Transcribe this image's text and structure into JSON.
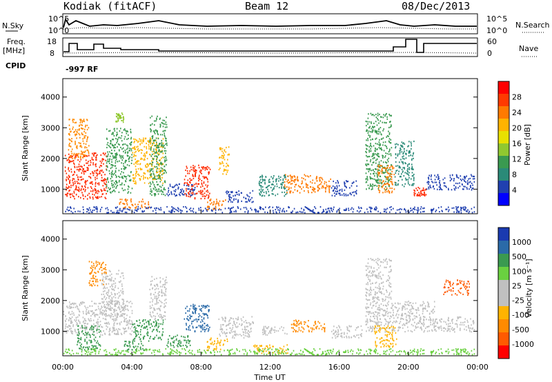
{
  "header": {
    "radar": "Kodiak (fitACF)",
    "beam": "Beam 12",
    "date": "08/Dec/2013"
  },
  "top_panels": {
    "nsky_label": "N.Sky",
    "nsearch_label": "N.Search",
    "nsky_ticks": [
      "10^5",
      "10^0"
    ],
    "nsearch_ticks": [
      "10^5",
      "10^0"
    ],
    "freq_label": "Freq.",
    "freq_unit": "[MHz]",
    "freq_ticks": [
      "18",
      "8"
    ],
    "nave_label": "Nave",
    "nave_ticks": [
      "60",
      "0"
    ],
    "cpid_label": "CPID",
    "cpid_value": "-997 RF"
  },
  "chart_data": [
    {
      "type": "heatmap",
      "name": "power",
      "ylabel": "Slant Range [km]",
      "xlabel": "",
      "ylim": [
        200,
        4600
      ],
      "xlim": [
        0,
        24
      ],
      "yticks": [
        "1000",
        "2000",
        "3000",
        "4000"
      ],
      "colorbar": {
        "label": "Power [dB]",
        "ticks": [
          "28",
          "24",
          "20",
          "16",
          "12",
          "8",
          "4"
        ],
        "colors": [
          "#ff0000",
          "#ff3a00",
          "#ff7a00",
          "#ffb300",
          "#e8e000",
          "#90c830",
          "#3a9a50",
          "#2a8a78",
          "#2040b0",
          "#0000ff"
        ]
      },
      "echoes": [
        {
          "t0": 0.1,
          "t1": 2.5,
          "r0": 700,
          "r1": 2200,
          "color": "#ff2a00"
        },
        {
          "t0": 0.3,
          "t1": 1.5,
          "r0": 2000,
          "r1": 3300,
          "color": "#ff8a00"
        },
        {
          "t0": 2.5,
          "t1": 4.0,
          "r0": 900,
          "r1": 3000,
          "color": "#3a9a50"
        },
        {
          "t0": 3.0,
          "t1": 3.5,
          "r0": 3200,
          "r1": 3500,
          "color": "#90c830"
        },
        {
          "t0": 3.2,
          "t1": 5.0,
          "r0": 400,
          "r1": 700,
          "color": "#ff7a00"
        },
        {
          "t0": 4.0,
          "t1": 5.8,
          "r0": 1200,
          "r1": 2700,
          "color": "#ffb300"
        },
        {
          "t0": 5.0,
          "t1": 6.0,
          "r0": 800,
          "r1": 3400,
          "color": "#3a9a50"
        },
        {
          "t0": 6.0,
          "t1": 7.8,
          "r0": 800,
          "r1": 1200,
          "color": "#2040b0"
        },
        {
          "t0": 7.0,
          "t1": 8.5,
          "r0": 700,
          "r1": 1800,
          "color": "#ff2a00"
        },
        {
          "t0": 8.3,
          "t1": 9.4,
          "r0": 350,
          "r1": 700,
          "color": "#ff7a00"
        },
        {
          "t0": 9.0,
          "t1": 9.6,
          "r0": 1500,
          "r1": 2400,
          "color": "#ffb300"
        },
        {
          "t0": 9.4,
          "t1": 11.0,
          "r0": 600,
          "r1": 1000,
          "color": "#2040b0"
        },
        {
          "t0": 11.3,
          "t1": 13.0,
          "r0": 800,
          "r1": 1500,
          "color": "#2a8a78"
        },
        {
          "t0": 12.8,
          "t1": 15.5,
          "r0": 900,
          "r1": 1500,
          "color": "#ff7a00"
        },
        {
          "t0": 15.5,
          "t1": 17.0,
          "r0": 800,
          "r1": 1300,
          "color": "#2040b0"
        },
        {
          "t0": 17.5,
          "t1": 19.0,
          "r0": 1000,
          "r1": 3500,
          "color": "#3a9a50"
        },
        {
          "t0": 18.2,
          "t1": 19.2,
          "r0": 900,
          "r1": 1800,
          "color": "#ff7a00"
        },
        {
          "t0": 19.2,
          "t1": 20.3,
          "r0": 1100,
          "r1": 2600,
          "color": "#2a8a78"
        },
        {
          "t0": 20.3,
          "t1": 21.0,
          "r0": 800,
          "r1": 1100,
          "color": "#ff2a00"
        },
        {
          "t0": 21.0,
          "t1": 23.8,
          "r0": 1000,
          "r1": 1500,
          "color": "#2040b0"
        },
        {
          "t0": 0.1,
          "t1": 23.8,
          "r0": 250,
          "r1": 450,
          "color": "#2040b0"
        }
      ]
    },
    {
      "type": "heatmap",
      "name": "velocity",
      "ylabel": "Slant Range [km]",
      "xlabel": "Time UT",
      "ylim": [
        200,
        4600
      ],
      "xlim": [
        0,
        24
      ],
      "yticks": [
        "1000",
        "2000",
        "3000",
        "4000"
      ],
      "xticks": [
        "00:00",
        "04:00",
        "08:00",
        "12:00",
        "16:00",
        "20:00",
        "00:00"
      ],
      "colorbar": {
        "label": "Velocity [m s⁻¹]",
        "ticks": [
          "1000",
          "500",
          "100",
          "25",
          "-25",
          "-100",
          "-500",
          "-1000"
        ],
        "colors": [
          "#1a3ab0",
          "#2a6aa8",
          "#3a9a50",
          "#6ad040",
          "#c0c0c0",
          "#c0c0c0",
          "#ffb300",
          "#ff8a00",
          "#ff5a00",
          "#ff0000"
        ]
      },
      "echoes": [
        {
          "t0": 0.0,
          "t1": 4.0,
          "r0": 900,
          "r1": 2000,
          "color": "#c0c0c0"
        },
        {
          "t0": 0.8,
          "t1": 2.2,
          "r0": 400,
          "r1": 1200,
          "color": "#3a9a50"
        },
        {
          "t0": 1.5,
          "t1": 2.5,
          "r0": 2500,
          "r1": 3300,
          "color": "#ff8a00"
        },
        {
          "t0": 2.2,
          "t1": 3.5,
          "r0": 1500,
          "r1": 3000,
          "color": "#c0c0c0"
        },
        {
          "t0": 3.5,
          "t1": 4.8,
          "r0": 400,
          "r1": 700,
          "color": "#3a9a50"
        },
        {
          "t0": 4.0,
          "t1": 5.8,
          "r0": 700,
          "r1": 1400,
          "color": "#3a9a50"
        },
        {
          "t0": 5.0,
          "t1": 6.0,
          "r0": 1400,
          "r1": 2800,
          "color": "#c0c0c0"
        },
        {
          "t0": 6.0,
          "t1": 7.5,
          "r0": 500,
          "r1": 900,
          "color": "#3a9a50"
        },
        {
          "t0": 7.0,
          "t1": 8.5,
          "r0": 1000,
          "r1": 1900,
          "color": "#2a6aa8"
        },
        {
          "t0": 8.3,
          "t1": 9.5,
          "r0": 400,
          "r1": 800,
          "color": "#ffb300"
        },
        {
          "t0": 9.0,
          "t1": 11.0,
          "r0": 800,
          "r1": 1500,
          "color": "#c0c0c0"
        },
        {
          "t0": 11.0,
          "t1": 13.0,
          "r0": 300,
          "r1": 600,
          "color": "#ffb300"
        },
        {
          "t0": 11.5,
          "t1": 13.0,
          "r0": 900,
          "r1": 1200,
          "color": "#c0c0c0"
        },
        {
          "t0": 13.2,
          "t1": 15.2,
          "r0": 1000,
          "r1": 1400,
          "color": "#ff8a00"
        },
        {
          "t0": 15.5,
          "t1": 17.3,
          "r0": 800,
          "r1": 1200,
          "color": "#c0c0c0"
        },
        {
          "t0": 17.5,
          "t1": 19.0,
          "r0": 1000,
          "r1": 3400,
          "color": "#c0c0c0"
        },
        {
          "t0": 18.0,
          "t1": 19.3,
          "r0": 500,
          "r1": 1200,
          "color": "#ffb300"
        },
        {
          "t0": 19.0,
          "t1": 21.5,
          "r0": 1000,
          "r1": 2000,
          "color": "#c0c0c0"
        },
        {
          "t0": 21.5,
          "t1": 23.8,
          "r0": 1000,
          "r1": 1500,
          "color": "#c0c0c0"
        },
        {
          "t0": 22.0,
          "t1": 23.5,
          "r0": 2200,
          "r1": 2700,
          "color": "#ff5a00"
        },
        {
          "t0": 0.0,
          "t1": 23.8,
          "r0": 250,
          "r1": 450,
          "color": "#6ad040"
        }
      ]
    }
  ]
}
